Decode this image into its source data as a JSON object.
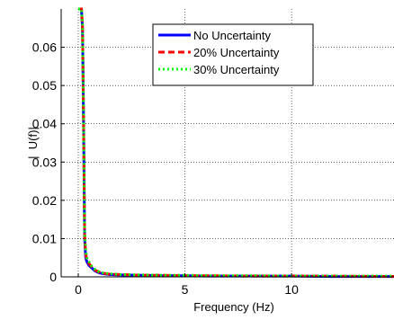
{
  "chart_data": {
    "type": "line",
    "title": "",
    "xlabel": "Frequency (Hz)",
    "ylabel": "|  U(f)|",
    "xlim": [
      -0.8,
      14.8
    ],
    "ylim": [
      0,
      0.07
    ],
    "xticks": [
      0,
      5,
      10
    ],
    "xtick_labels": [
      "0",
      "5",
      "10"
    ],
    "yticks": [
      0,
      0.01,
      0.02,
      0.03,
      0.04,
      0.05,
      0.06
    ],
    "ytick_labels": [
      "0",
      "0.01",
      "0.02",
      "0.03",
      "0.04",
      "0.05",
      "0.06"
    ],
    "grid": true,
    "legend_position": "top-right",
    "x": [
      0,
      0.02,
      0.05,
      0.1,
      0.15,
      0.2,
      0.25,
      0.3,
      0.35,
      0.4,
      0.5,
      0.6,
      0.7,
      0.8,
      1.0,
      1.2,
      1.5,
      2,
      3,
      4,
      5,
      6,
      8,
      10,
      12,
      14.8
    ],
    "series": [
      {
        "name": "No Uncertainty",
        "color": "#0000ff",
        "style": "solid",
        "values": [
          0.07,
          0.07,
          0.07,
          0.07,
          0.07,
          0.065,
          0.04,
          0.01,
          0.005,
          0.004,
          0.003,
          0.0025,
          0.002,
          0.0015,
          0.001,
          0.0008,
          0.0006,
          0.0005,
          0.0004,
          0.0003,
          0.0003,
          0.0002,
          0.0002,
          0.0002,
          0.0001,
          0.0001
        ]
      },
      {
        "name": "20% Uncertainty",
        "color": "#ff0000",
        "style": "dashed",
        "values": [
          0.07,
          0.07,
          0.07,
          0.07,
          0.07,
          0.065,
          0.04,
          0.011,
          0.006,
          0.0045,
          0.0035,
          0.0028,
          0.0022,
          0.0017,
          0.0012,
          0.0009,
          0.0007,
          0.0006,
          0.0004,
          0.0004,
          0.0003,
          0.0003,
          0.0002,
          0.0002,
          0.0002,
          0.0001
        ]
      },
      {
        "name": "30% Uncertainty",
        "color": "#00ff00",
        "style": "dotted",
        "values": [
          0.07,
          0.07,
          0.07,
          0.07,
          0.07,
          0.066,
          0.042,
          0.012,
          0.007,
          0.005,
          0.004,
          0.003,
          0.0024,
          0.0018,
          0.0013,
          0.001,
          0.0008,
          0.0006,
          0.0005,
          0.0004,
          0.0004,
          0.0003,
          0.0003,
          0.0002,
          0.0002,
          0.0002
        ]
      }
    ]
  }
}
